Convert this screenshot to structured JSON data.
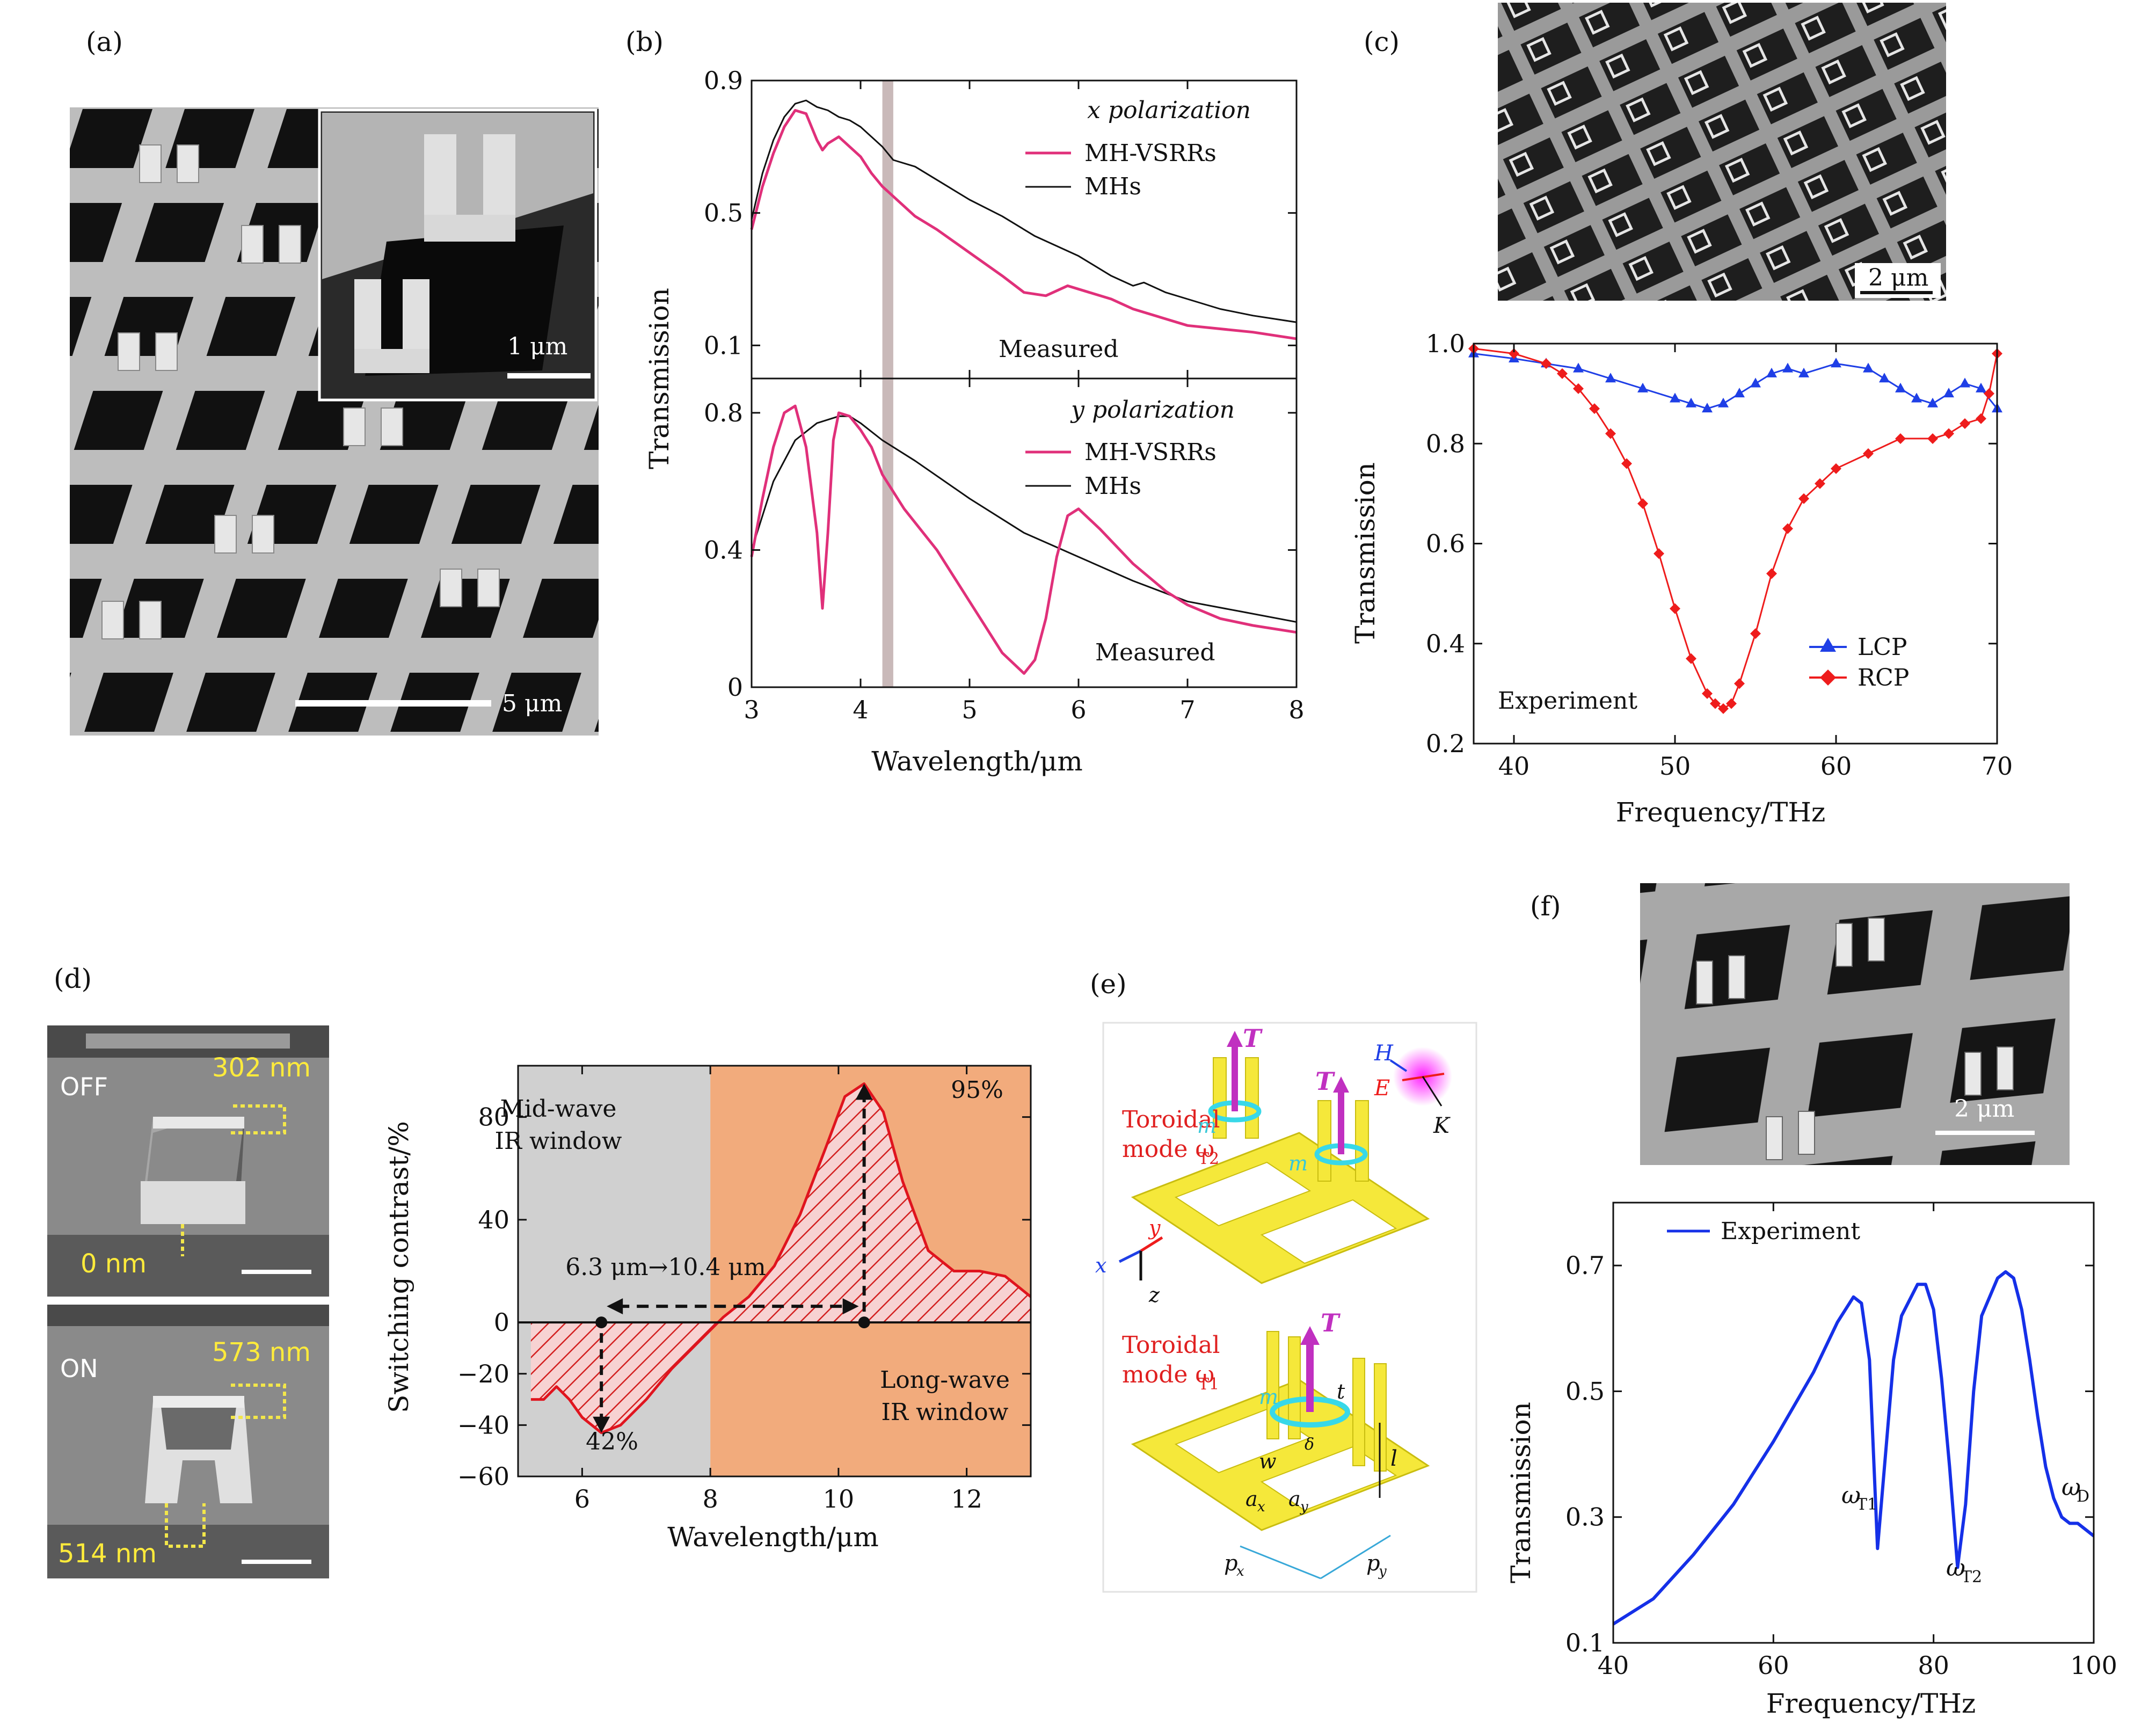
{
  "panels": {
    "a": {
      "label": "(a)",
      "scalebar_main": "5 μm",
      "scalebar_inset": "1 μm",
      "image_desc": "sem-vertical-split-ring-array"
    },
    "b": {
      "label": "(b)",
      "top_title": "x polarization",
      "bottom_title": "y polarization",
      "legend_series1": "MH-VSRRs",
      "legend_series2": "MHs",
      "measured_top": "Measured",
      "measured_bottom": "Measured",
      "xlabel": "Wavelength/μm",
      "ylabel": "Transmission"
    },
    "c": {
      "label": "(c)",
      "scalebar": "2 μm",
      "legend_lcp": "LCP",
      "legend_rcp": "RCP",
      "experiment": "Experiment",
      "xlabel": "Frequency/THz",
      "ylabel": "Transmission"
    },
    "d": {
      "label": "(d)",
      "off_label": "OFF",
      "on_label": "ON",
      "off_top": "302 nm",
      "off_bottom": "0 nm",
      "on_top": "573 nm",
      "on_bottom": "514 nm",
      "midwave_line1": "Mid-wave",
      "midwave_line2": "IR window",
      "longwave_line1": "Long-wave",
      "longwave_line2": "IR window",
      "pct95": "95%",
      "pct42": "42%",
      "shift": "6.3 μm→10.4 μm",
      "xlabel": "Wavelength/μm",
      "ylabel": "Switching contrast/%"
    },
    "e": {
      "label": "(e)",
      "toroidal_top_1": "Toroidal",
      "toroidal_top_2": "mode ω",
      "toroidal_top_sub": "T2",
      "toroidal_bot_1": "Toroidal",
      "toroidal_bot_2": "mode ω",
      "toroidal_bot_sub": "T1",
      "T": "T",
      "m": "m",
      "H": "H",
      "E": "E",
      "K": "K",
      "x": "x",
      "y": "y",
      "z": "z",
      "t": "t",
      "w": "w",
      "delta": "δ",
      "l": "l",
      "ax": "a",
      "ax_sub": "x",
      "ay": "a",
      "ay_sub": "y",
      "px": "p",
      "px_sub": "x",
      "py": "p",
      "py_sub": "y"
    },
    "f": {
      "label": "(f)",
      "scalebar": "2 μm",
      "legend": "Experiment",
      "wt1": "ω",
      "wt1_sub": "T1",
      "wt2": "ω",
      "wt2_sub": "T2",
      "wd": "ω",
      "wd_sub": "D",
      "xlabel": "Frequency/THz",
      "ylabel": "Transmission"
    }
  },
  "colors": {
    "pink": "#e0307a",
    "black": "#111111",
    "blue": "#1f3fe6",
    "red": "#ee1c1c",
    "fblue": "#1530e8",
    "gray_band": "#c9b9b9",
    "mid_bg": "#d0d0d0",
    "long_bg": "#f2ab7c",
    "yellow": "#f2e64a"
  },
  "chart_data": [
    {
      "id": "b-top",
      "type": "line",
      "title": "x polarization",
      "xlabel": "Wavelength/μm",
      "ylabel": "Transmission",
      "xlim": [
        3,
        8
      ],
      "ylim": [
        0,
        0.9
      ],
      "xticks": [
        3,
        4,
        5,
        6,
        7,
        8
      ],
      "yticks": [
        0.1,
        0.5,
        0.9
      ],
      "band": [
        4.2,
        4.3
      ],
      "series": [
        {
          "name": "MH-VSRRs",
          "x": [
            3.0,
            3.1,
            3.2,
            3.3,
            3.4,
            3.5,
            3.6,
            3.65,
            3.7,
            3.8,
            3.9,
            4.0,
            4.1,
            4.2,
            4.3,
            4.5,
            4.7,
            5.0,
            5.3,
            5.5,
            5.7,
            5.9,
            6.1,
            6.3,
            6.5,
            6.8,
            7.0,
            7.3,
            7.6,
            8.0
          ],
          "y": [
            0.45,
            0.58,
            0.68,
            0.76,
            0.81,
            0.8,
            0.72,
            0.69,
            0.71,
            0.73,
            0.7,
            0.67,
            0.62,
            0.58,
            0.55,
            0.49,
            0.45,
            0.38,
            0.31,
            0.26,
            0.25,
            0.28,
            0.26,
            0.24,
            0.21,
            0.18,
            0.16,
            0.15,
            0.14,
            0.12
          ]
        },
        {
          "name": "MHs",
          "x": [
            3.0,
            3.1,
            3.2,
            3.3,
            3.4,
            3.5,
            3.6,
            3.7,
            3.8,
            3.9,
            4.0,
            4.1,
            4.2,
            4.3,
            4.5,
            4.8,
            5.0,
            5.3,
            5.6,
            6.0,
            6.3,
            6.5,
            6.6,
            6.8,
            7.0,
            7.3,
            7.6,
            8.0
          ],
          "y": [
            0.48,
            0.62,
            0.72,
            0.79,
            0.83,
            0.84,
            0.82,
            0.81,
            0.79,
            0.78,
            0.76,
            0.73,
            0.7,
            0.66,
            0.64,
            0.58,
            0.54,
            0.49,
            0.43,
            0.37,
            0.31,
            0.28,
            0.29,
            0.26,
            0.24,
            0.21,
            0.19,
            0.17
          ]
        }
      ]
    },
    {
      "id": "b-bottom",
      "type": "line",
      "title": "y polarization",
      "xlabel": "Wavelength/μm",
      "ylabel": "Transmission",
      "xlim": [
        3,
        8
      ],
      "ylim": [
        0,
        0.9
      ],
      "xticks": [
        3,
        4,
        5,
        6,
        7,
        8
      ],
      "yticks": [
        0,
        0.4,
        0.8
      ],
      "band": [
        4.2,
        4.3
      ],
      "series": [
        {
          "name": "MH-VSRRs",
          "x": [
            3.0,
            3.1,
            3.2,
            3.3,
            3.4,
            3.5,
            3.6,
            3.65,
            3.7,
            3.75,
            3.8,
            3.9,
            4.0,
            4.1,
            4.2,
            4.4,
            4.7,
            5.0,
            5.3,
            5.5,
            5.6,
            5.7,
            5.8,
            5.9,
            6.0,
            6.2,
            6.5,
            6.8,
            7.0,
            7.3,
            7.6,
            8.0
          ],
          "y": [
            0.38,
            0.55,
            0.7,
            0.8,
            0.82,
            0.7,
            0.45,
            0.23,
            0.45,
            0.72,
            0.8,
            0.79,
            0.75,
            0.7,
            0.62,
            0.52,
            0.4,
            0.25,
            0.1,
            0.04,
            0.08,
            0.2,
            0.38,
            0.5,
            0.52,
            0.46,
            0.36,
            0.28,
            0.24,
            0.2,
            0.18,
            0.16
          ]
        },
        {
          "name": "MHs",
          "x": [
            3.0,
            3.2,
            3.4,
            3.6,
            3.8,
            3.9,
            4.0,
            4.2,
            4.5,
            5.0,
            5.5,
            6.0,
            6.5,
            7.0,
            7.5,
            8.0
          ],
          "y": [
            0.4,
            0.6,
            0.72,
            0.77,
            0.79,
            0.79,
            0.77,
            0.72,
            0.66,
            0.55,
            0.45,
            0.38,
            0.31,
            0.25,
            0.22,
            0.19
          ]
        }
      ]
    },
    {
      "id": "c",
      "type": "line",
      "xlabel": "Frequency/THz",
      "ylabel": "Transmission",
      "xlim": [
        37.5,
        70
      ],
      "ylim": [
        0.2,
        1.0
      ],
      "xticks": [
        40,
        50,
        60,
        70
      ],
      "yticks": [
        0.2,
        0.4,
        0.6,
        0.8,
        1.0
      ],
      "series": [
        {
          "name": "LCP",
          "x": [
            37.5,
            40,
            42,
            44,
            46,
            48,
            50,
            51,
            52,
            53,
            54,
            55,
            56,
            57,
            58,
            60,
            62,
            63,
            64,
            65,
            66,
            67,
            68,
            69,
            70
          ],
          "y": [
            0.98,
            0.97,
            0.96,
            0.95,
            0.93,
            0.91,
            0.89,
            0.88,
            0.87,
            0.88,
            0.9,
            0.92,
            0.94,
            0.95,
            0.94,
            0.96,
            0.95,
            0.93,
            0.91,
            0.89,
            0.88,
            0.9,
            0.92,
            0.91,
            0.87
          ]
        },
        {
          "name": "RCP",
          "x": [
            37.5,
            40,
            42,
            43,
            44,
            45,
            46,
            47,
            48,
            49,
            50,
            51,
            52,
            52.5,
            53,
            53.5,
            54,
            55,
            56,
            57,
            58,
            59,
            60,
            62,
            64,
            66,
            67,
            68,
            69,
            69.5,
            70
          ],
          "y": [
            0.99,
            0.98,
            0.96,
            0.94,
            0.91,
            0.87,
            0.82,
            0.76,
            0.68,
            0.58,
            0.47,
            0.37,
            0.3,
            0.28,
            0.27,
            0.28,
            0.32,
            0.42,
            0.54,
            0.63,
            0.69,
            0.72,
            0.75,
            0.78,
            0.81,
            0.81,
            0.82,
            0.84,
            0.85,
            0.9,
            0.98
          ]
        }
      ]
    },
    {
      "id": "d",
      "type": "area",
      "xlabel": "Wavelength/μm",
      "ylabel": "Switching contrast/%",
      "xlim": [
        5,
        13
      ],
      "ylim": [
        -60,
        100
      ],
      "xticks": [
        6,
        8,
        10,
        12
      ],
      "yticks": [
        -60,
        -40,
        -20,
        0,
        40,
        80
      ],
      "regions": [
        {
          "name": "Mid-wave IR window",
          "x": [
            5,
            8
          ]
        },
        {
          "name": "Long-wave IR window",
          "x": [
            8,
            13
          ]
        }
      ],
      "series": [
        {
          "name": "Switching contrast",
          "x": [
            5.2,
            5.4,
            5.6,
            5.8,
            6.0,
            6.3,
            6.6,
            7.0,
            7.4,
            7.8,
            8.2,
            8.6,
            9.0,
            9.4,
            9.8,
            10.1,
            10.4,
            10.7,
            11.0,
            11.4,
            11.8,
            12.2,
            12.6,
            13.0
          ],
          "y": [
            -30,
            -30,
            -25,
            -30,
            -37,
            -43,
            -40,
            -30,
            -18,
            -8,
            2,
            10,
            22,
            42,
            68,
            88,
            93,
            82,
            55,
            28,
            20,
            20,
            18,
            10
          ]
        }
      ]
    },
    {
      "id": "f",
      "type": "line",
      "xlabel": "Frequency/THz",
      "ylabel": "Transmission",
      "xlim": [
        40,
        100
      ],
      "ylim": [
        0.1,
        0.8
      ],
      "xticks": [
        40,
        60,
        80,
        100
      ],
      "yticks": [
        0.1,
        0.3,
        0.5,
        0.7
      ],
      "series": [
        {
          "name": "Experiment",
          "x": [
            40,
            45,
            50,
            55,
            60,
            65,
            68,
            70,
            71,
            72,
            73,
            74,
            75,
            76,
            78,
            79,
            80,
            81,
            82,
            83,
            84,
            85,
            86,
            88,
            89,
            90,
            91,
            92,
            93,
            94,
            95,
            96,
            97,
            98,
            99,
            100
          ],
          "y": [
            0.13,
            0.17,
            0.24,
            0.32,
            0.42,
            0.53,
            0.61,
            0.65,
            0.64,
            0.55,
            0.25,
            0.4,
            0.55,
            0.62,
            0.67,
            0.67,
            0.63,
            0.52,
            0.38,
            0.22,
            0.32,
            0.5,
            0.62,
            0.68,
            0.69,
            0.68,
            0.63,
            0.55,
            0.46,
            0.38,
            0.33,
            0.3,
            0.29,
            0.29,
            0.28,
            0.27
          ]
        }
      ]
    }
  ]
}
